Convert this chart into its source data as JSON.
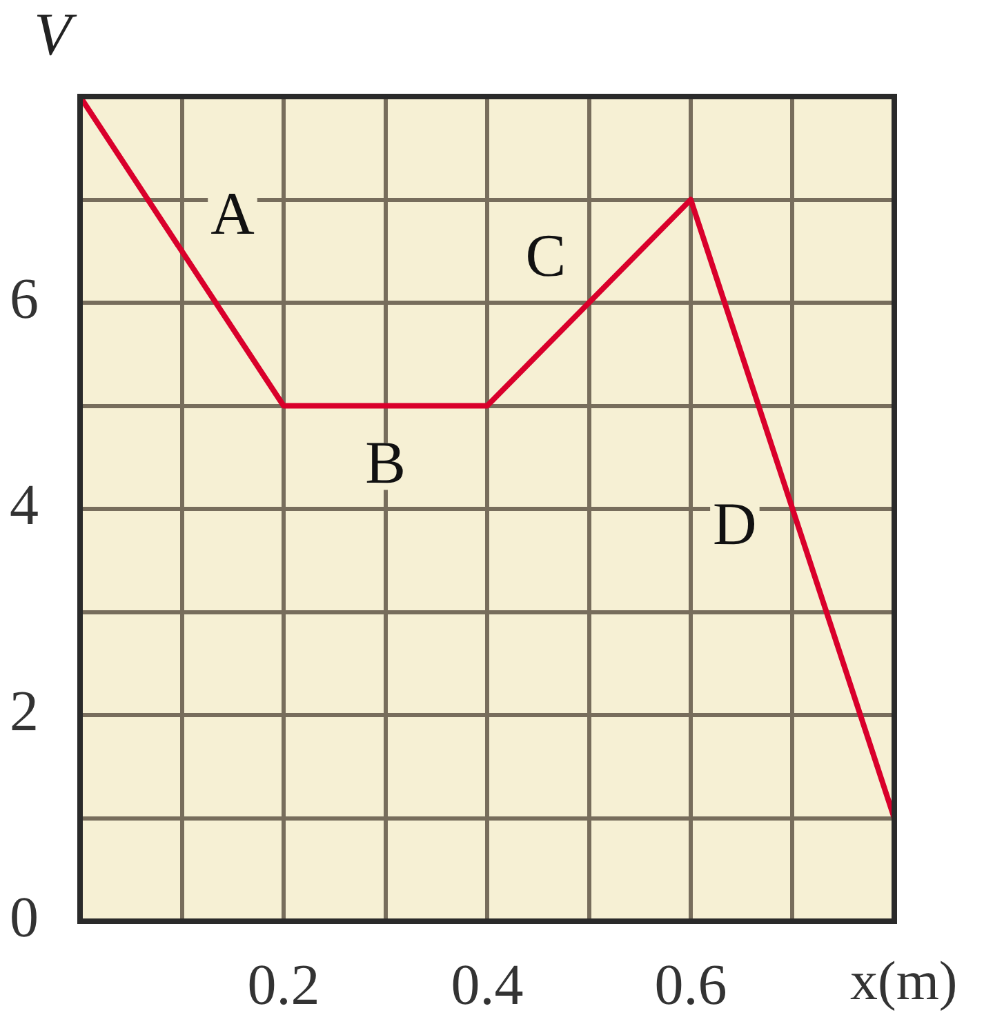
{
  "chart_data": {
    "type": "line",
    "xlabel": "x(m)",
    "ylabel": "V",
    "x": [
      0,
      0.2,
      0.4,
      0.6,
      0.8
    ],
    "series": [
      {
        "color": "#d9002b",
        "values": [
          8,
          5,
          5,
          7,
          1
        ]
      }
    ],
    "xlim": [
      0,
      0.8
    ],
    "ylim": [
      0,
      8
    ],
    "xticks": [
      {
        "value": 0,
        "label": null
      },
      {
        "value": 0.1,
        "label": null
      },
      0.2,
      {
        "value": 0.3,
        "label": null
      },
      0.4,
      {
        "value": 0.5,
        "label": null
      },
      0.6,
      {
        "value": 0.7,
        "label": null
      },
      {
        "value": 0.8,
        "label": null
      }
    ],
    "yticks": [
      0,
      {
        "value": 1,
        "label": null
      },
      2,
      {
        "value": 3,
        "label": null
      },
      4,
      {
        "value": 5,
        "label": null
      },
      6,
      {
        "value": 7,
        "label": null
      },
      {
        "value": 8,
        "label": null
      }
    ],
    "grid": true,
    "marker": "none",
    "line_style": "solid",
    "annotations": [
      "A",
      "B",
      "C",
      "D"
    ]
  }
}
